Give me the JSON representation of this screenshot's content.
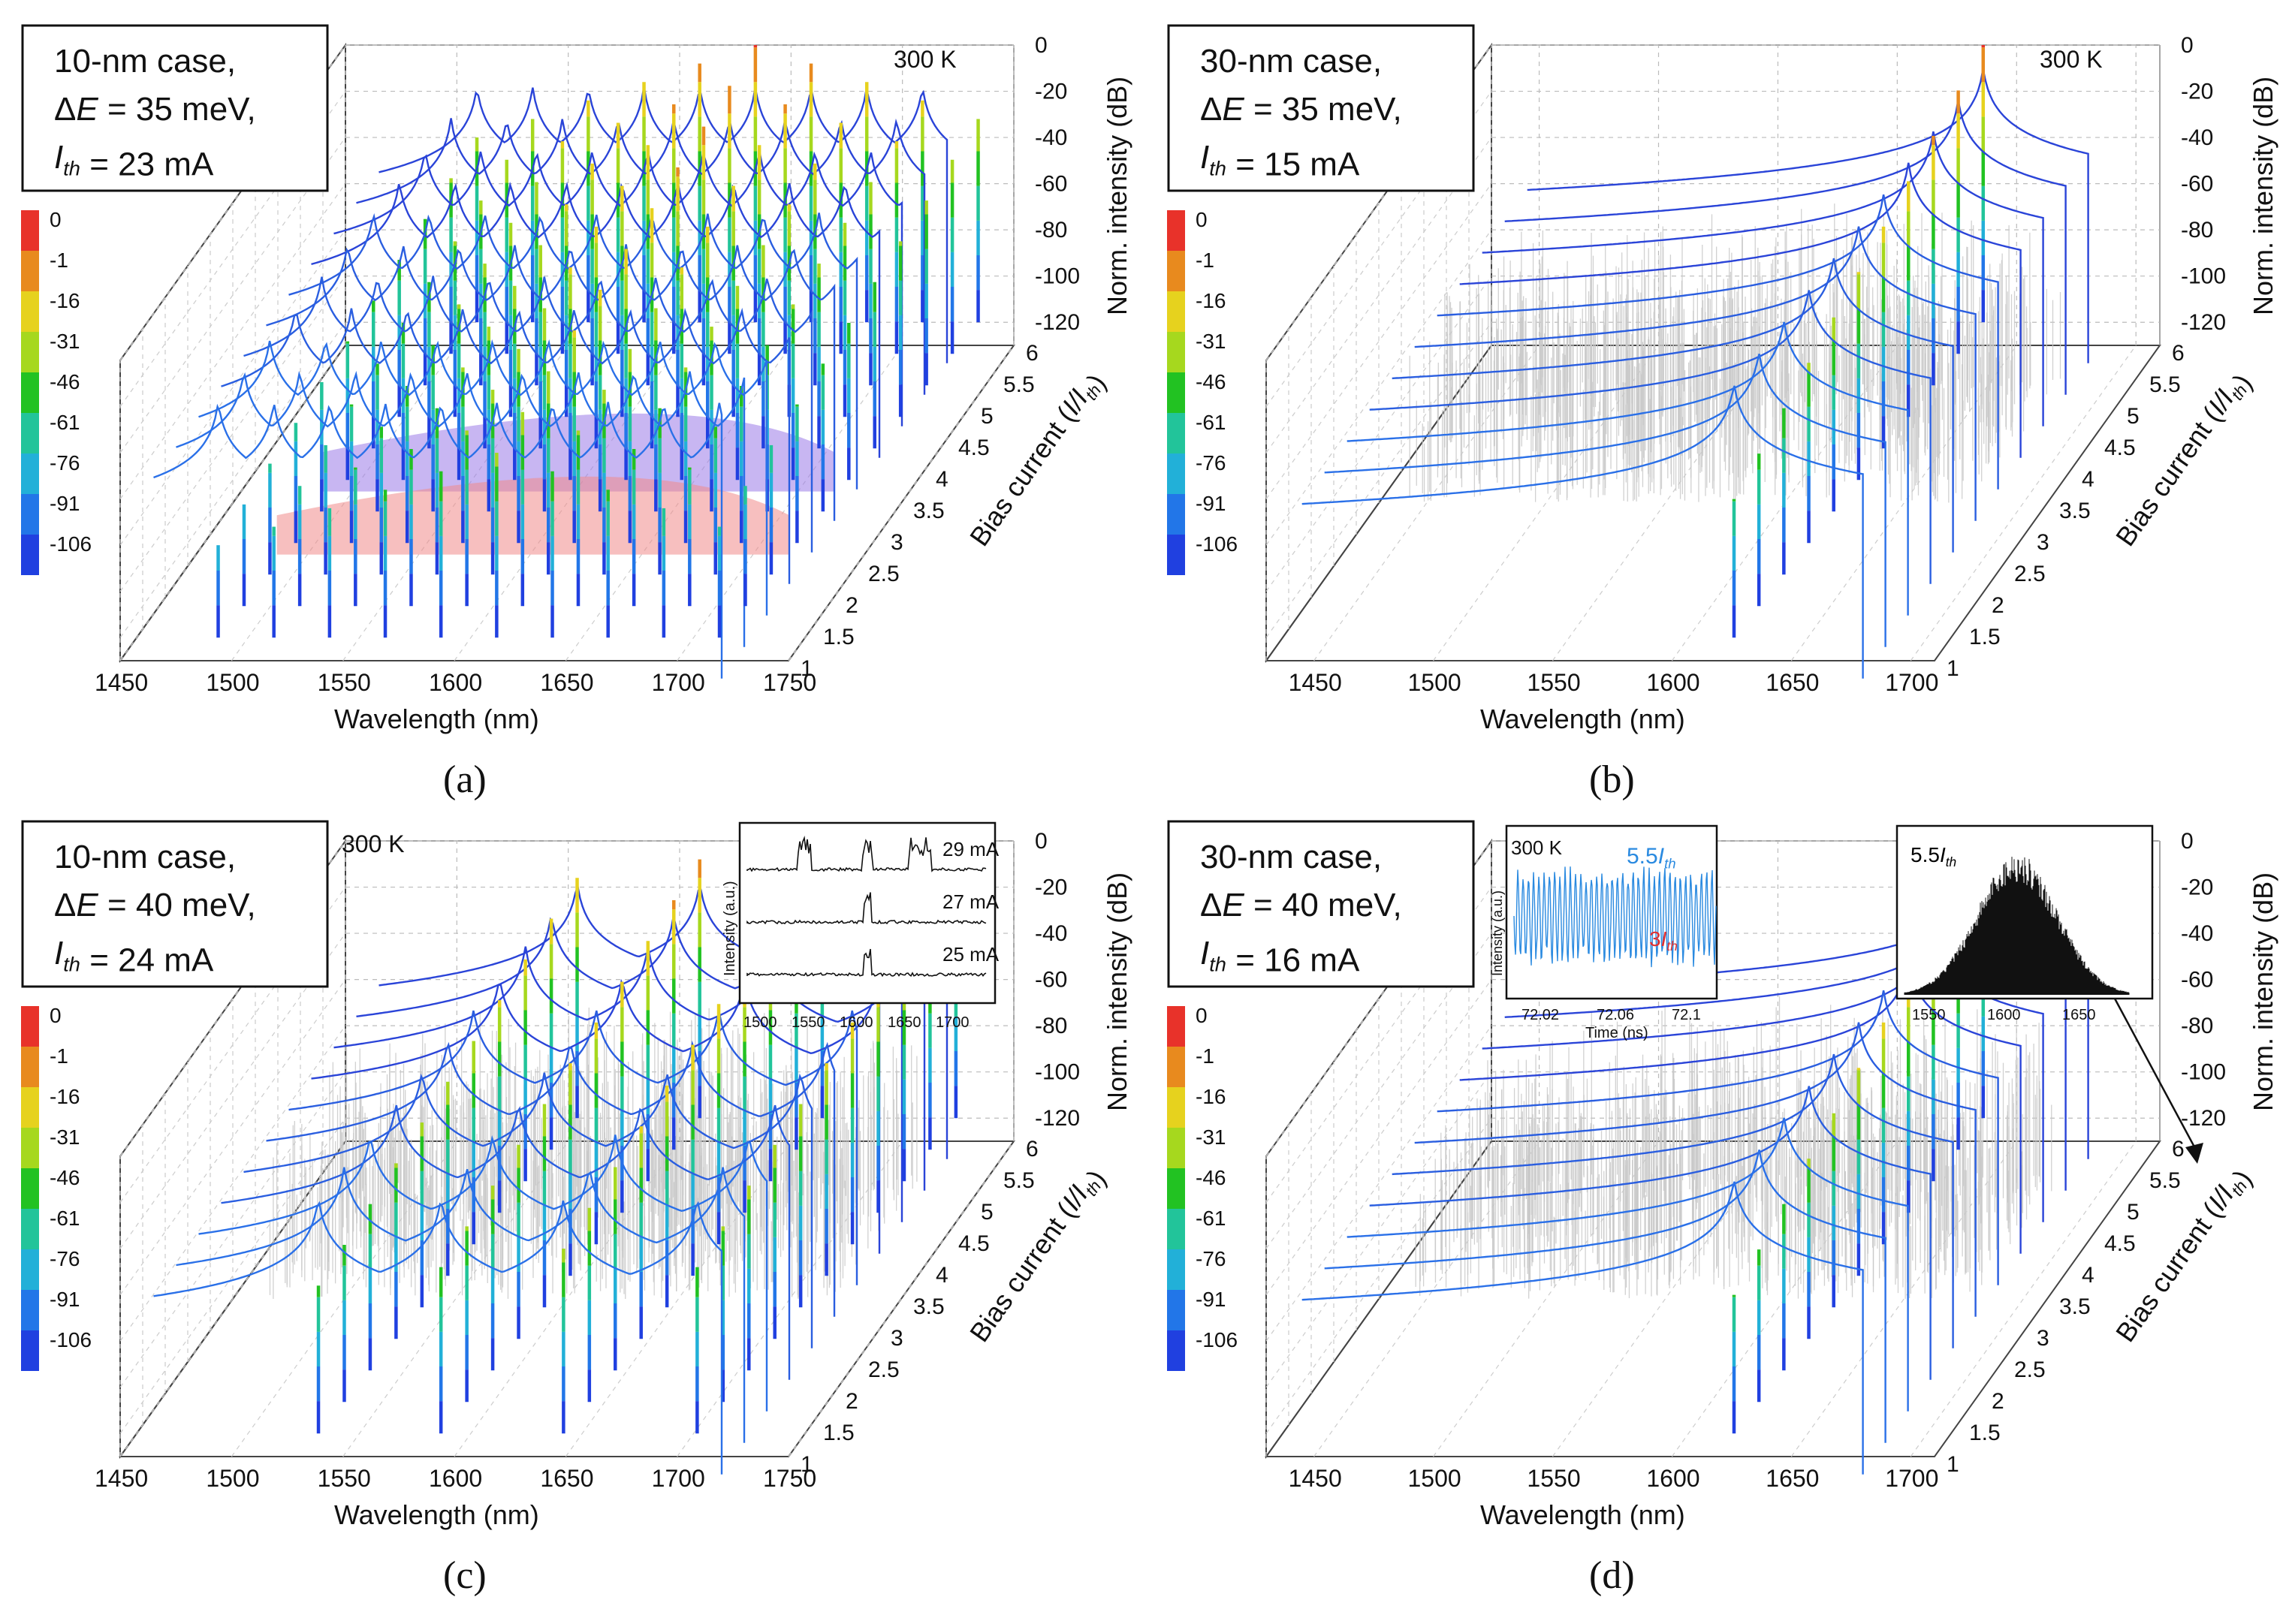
{
  "chart_data": [
    {
      "type": "line",
      "caption": "(a)",
      "info": [
        "10-nm case,",
        "ΔE = 35 meV,",
        "Ith = 23 mA"
      ],
      "temperature": "300 K",
      "xlabel": "Wavelength (nm)",
      "x_ticks": [
        "1450",
        "1500",
        "1550",
        "1600",
        "1650",
        "1700",
        "1750"
      ],
      "xlim": [
        1450,
        1750
      ],
      "ylabel": "Bias current (I/Ith)",
      "y_ticks": [
        "1",
        "1.5",
        "2",
        "2.5",
        "3",
        "3.5",
        "4",
        "4.5",
        "5",
        "5.5",
        "6"
      ],
      "zlabel": "Norm. intensity (dB)",
      "z_ticks": [
        "0",
        "-20",
        "-40",
        "-60",
        "-80",
        "-100",
        "-120"
      ],
      "zlim": [
        -130,
        0
      ],
      "colorbar_ticks": [
        "0",
        "-1",
        "-16",
        "-31",
        "-46",
        "-61",
        "-76",
        "-91",
        "-106"
      ],
      "bias_levels": [
        1,
        1.5,
        2,
        2.5,
        3,
        3.5,
        4,
        4.5,
        5,
        5.5,
        6
      ],
      "peaks_nm": [
        1500,
        1525,
        1550,
        1575,
        1600,
        1625,
        1650,
        1675,
        1700,
        1725
      ]
    },
    {
      "type": "line",
      "caption": "(b)",
      "info": [
        "30-nm case,",
        "ΔE = 35 meV,",
        "Ith = 15 mA"
      ],
      "temperature": "300 K",
      "xlabel": "Wavelength (nm)",
      "x_ticks": [
        "1450",
        "1500",
        "1550",
        "1600",
        "1650",
        "1700"
      ],
      "xlim": [
        1430,
        1710
      ],
      "ylabel": "Bias current (I/Ith)",
      "y_ticks": [
        "1",
        "1.5",
        "2",
        "2.5",
        "3",
        "3.5",
        "4",
        "4.5",
        "5",
        "5.5",
        "6"
      ],
      "zlabel": "Norm. intensity (dB)",
      "z_ticks": [
        "0",
        "-20",
        "-40",
        "-60",
        "-80",
        "-100",
        "-120"
      ],
      "zlim": [
        -130,
        0
      ],
      "colorbar_ticks": [
        "0",
        "-1",
        "-16",
        "-31",
        "-46",
        "-61",
        "-76",
        "-91",
        "-106"
      ],
      "bias_levels": [
        1,
        1.5,
        2,
        2.5,
        3,
        3.5,
        4,
        4.5,
        5,
        5.5,
        6
      ],
      "peaks_nm": [
        1630
      ]
    },
    {
      "type": "line",
      "caption": "(c)",
      "info": [
        "10-nm case,",
        "ΔE = 40 meV,",
        "Ith = 24 mA"
      ],
      "temperature": "300 K",
      "xlabel": "Wavelength (nm)",
      "x_ticks": [
        "1450",
        "1500",
        "1550",
        "1600",
        "1650",
        "1700",
        "1750"
      ],
      "xlim": [
        1450,
        1750
      ],
      "ylabel": "Bias current (I/Ith)",
      "y_ticks": [
        "1",
        "1.5",
        "2",
        "2.5",
        "3",
        "3.5",
        "4",
        "4.5",
        "5",
        "5.5",
        "6"
      ],
      "zlabel": "Norm. intensity (dB)",
      "z_ticks": [
        "0",
        "-20",
        "-40",
        "-60",
        "-80",
        "-100",
        "-120"
      ],
      "zlim": [
        -130,
        0
      ],
      "colorbar_ticks": [
        "0",
        "-1",
        "-16",
        "-31",
        "-46",
        "-61",
        "-76",
        "-91",
        "-106"
      ],
      "bias_levels": [
        1,
        1.5,
        2,
        2.5,
        3,
        3.5,
        4,
        4.5,
        5,
        5.5,
        6
      ],
      "peaks_nm": [
        1545,
        1600,
        1655,
        1715
      ],
      "inset": {
        "ylabel": "Intensity (a.u.)",
        "x_ticks": [
          "1500",
          "1550",
          "1600",
          "1650",
          "1700"
        ],
        "traces": [
          "29 mA",
          "27 mA",
          "25 mA"
        ]
      }
    },
    {
      "type": "line",
      "caption": "(d)",
      "info": [
        "30-nm case,",
        "ΔE = 40 meV,",
        "Ith = 16 mA"
      ],
      "temperature": "300 K",
      "xlabel": "Wavelength (nm)",
      "x_ticks": [
        "1450",
        "1500",
        "1550",
        "1600",
        "1650",
        "1700"
      ],
      "xlim": [
        1430,
        1710
      ],
      "ylabel": "Bias current (I/Ith)",
      "y_ticks": [
        "1",
        "1.5",
        "2",
        "2.5",
        "3",
        "3.5",
        "4",
        "4.5",
        "5",
        "5.5",
        "6"
      ],
      "zlabel": "Norm. intensity (dB)",
      "z_ticks": [
        "0",
        "-20",
        "-40",
        "-60",
        "-80",
        "-100",
        "-120"
      ],
      "zlim": [
        -130,
        0
      ],
      "colorbar_ticks": [
        "0",
        "-1",
        "-16",
        "-31",
        "-46",
        "-61",
        "-76",
        "-91",
        "-106"
      ],
      "bias_levels": [
        1,
        1.5,
        2,
        2.5,
        3,
        3.5,
        4,
        4.5,
        5,
        5.5,
        6
      ],
      "peaks_nm": [
        1630
      ],
      "inset_time": {
        "xlabel": "Time (ns)",
        "ylabel": "Intensity (a.u.)",
        "x_ticks": [
          "72.02",
          "72.06",
          "72.1"
        ],
        "label_high": "5.5Ith",
        "label_low": "3Ith"
      },
      "inset_spectrum": {
        "label": "5.5Ith",
        "x_ticks": [
          "1550",
          "1600",
          "1650"
        ]
      }
    }
  ]
}
